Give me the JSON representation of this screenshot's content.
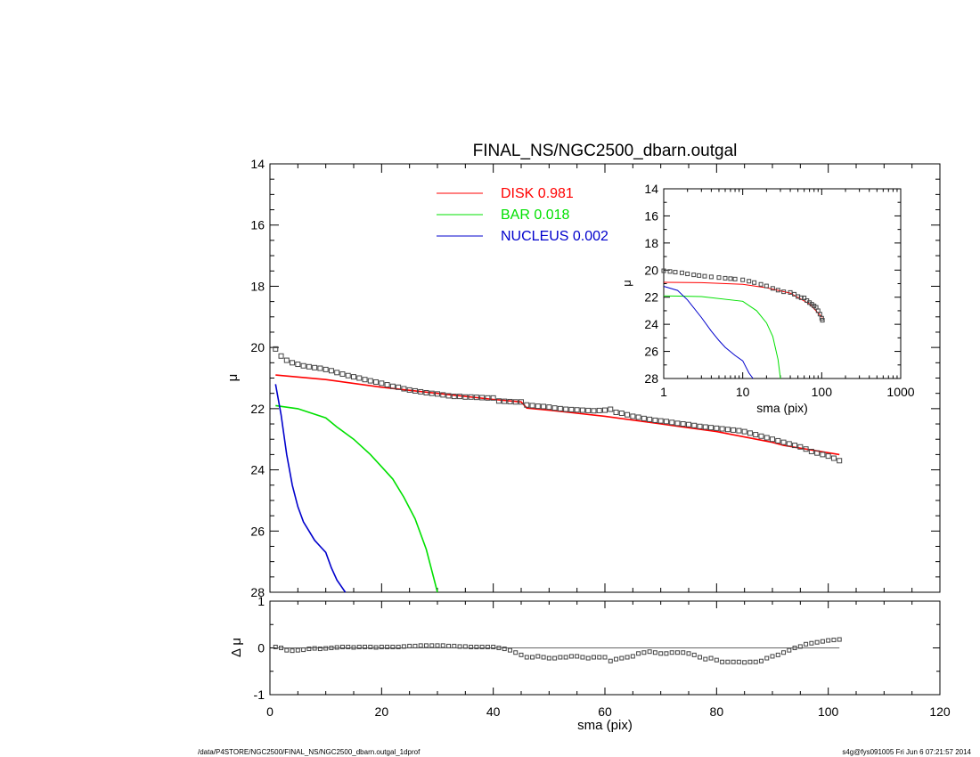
{
  "footer": {
    "path": "/data/P4STORE/NGC2500/FINAL_NS/NGC2500_dbarn.outgal_1dprof",
    "stamp": "s4g@fys091005  Fri Jun  6 07:21:57 2014"
  },
  "chart_data": [
    {
      "id": "main",
      "type": "line",
      "title": "FINAL_NS/NGC2500_dbarn.outgal",
      "xlabel": "",
      "ylabel": "μ",
      "xlim": [
        0,
        120
      ],
      "ylim": [
        28,
        14
      ],
      "x_ticks": [
        0,
        20,
        40,
        60,
        80,
        100,
        120
      ],
      "y_ticks": [
        14,
        16,
        18,
        20,
        22,
        24,
        26,
        28
      ],
      "legend": {
        "placement": "top-center",
        "entries": [
          {
            "label": "DISK",
            "value": "0.981",
            "color": "#ff0000"
          },
          {
            "label": "BAR",
            "value": "0.018",
            "color": "#00e000"
          },
          {
            "label": "NUCLEUS",
            "value": "0.002",
            "color": "#0000cc"
          }
        ]
      },
      "series": [
        {
          "name": "DISK",
          "color": "#ff0000",
          "x": [
            1,
            10,
            20,
            30,
            40,
            45,
            46,
            50,
            60,
            70,
            80,
            90,
            92,
            102
          ],
          "y": [
            20.9,
            21.05,
            21.3,
            21.5,
            21.7,
            21.78,
            21.98,
            22.05,
            22.25,
            22.5,
            22.75,
            23.1,
            23.2,
            23.5
          ]
        },
        {
          "name": "BAR",
          "color": "#00e000",
          "x": [
            1,
            5,
            10,
            12,
            15,
            18,
            20,
            22,
            24,
            26,
            28,
            30
          ],
          "y": [
            21.9,
            22.0,
            22.3,
            22.6,
            23.0,
            23.5,
            23.9,
            24.3,
            24.9,
            25.6,
            26.6,
            28.0
          ]
        },
        {
          "name": "NUCLEUS",
          "color": "#0000cc",
          "x": [
            1,
            2,
            3,
            4,
            5,
            6,
            7,
            8,
            9,
            10,
            11,
            12,
            13.5
          ],
          "y": [
            21.2,
            22.2,
            23.5,
            24.5,
            25.2,
            25.7,
            26.0,
            26.3,
            26.5,
            26.7,
            27.2,
            27.6,
            28.0
          ]
        },
        {
          "name": "data",
          "marker": "square",
          "color": "#444444",
          "x": [
            1,
            2,
            3,
            4,
            5,
            6,
            7,
            8,
            9,
            10,
            11,
            12,
            13,
            14,
            15,
            16,
            17,
            18,
            19,
            20,
            21,
            22,
            23,
            24,
            25,
            26,
            27,
            28,
            29,
            30,
            31,
            32,
            33,
            34,
            35,
            36,
            37,
            38,
            39,
            40,
            41,
            42,
            43,
            44,
            45,
            46,
            47,
            48,
            49,
            50,
            51,
            52,
            53,
            54,
            55,
            56,
            57,
            58,
            59,
            60,
            61,
            62,
            63,
            64,
            65,
            66,
            67,
            68,
            69,
            70,
            71,
            72,
            73,
            74,
            75,
            76,
            77,
            78,
            79,
            80,
            81,
            82,
            83,
            84,
            85,
            86,
            87,
            88,
            89,
            90,
            91,
            92,
            93,
            94,
            95,
            96,
            97,
            98,
            99,
            100,
            101,
            102
          ],
          "y": [
            20.05,
            20.28,
            20.42,
            20.5,
            20.55,
            20.6,
            20.63,
            20.66,
            20.68,
            20.72,
            20.76,
            20.82,
            20.87,
            20.92,
            20.96,
            21.0,
            21.05,
            21.09,
            21.13,
            21.17,
            21.22,
            21.27,
            21.3,
            21.35,
            21.39,
            21.42,
            21.45,
            21.48,
            21.5,
            21.52,
            21.55,
            21.58,
            21.6,
            21.6,
            21.62,
            21.62,
            21.63,
            21.64,
            21.65,
            21.65,
            21.75,
            21.76,
            21.77,
            21.78,
            21.78,
            21.88,
            21.9,
            21.92,
            21.93,
            21.95,
            21.98,
            22.0,
            22.02,
            22.03,
            22.04,
            22.05,
            22.06,
            22.07,
            22.06,
            22.05,
            22.02,
            22.12,
            22.15,
            22.2,
            22.25,
            22.28,
            22.32,
            22.35,
            22.38,
            22.4,
            22.42,
            22.45,
            22.48,
            22.5,
            22.52,
            22.55,
            22.58,
            22.6,
            22.62,
            22.64,
            22.66,
            22.68,
            22.7,
            22.72,
            22.75,
            22.8,
            22.85,
            22.9,
            22.95,
            23.0,
            23.05,
            23.1,
            23.15,
            23.2,
            23.25,
            23.32,
            23.4,
            23.45,
            23.5,
            23.55,
            23.62,
            23.7
          ]
        }
      ]
    },
    {
      "id": "residual",
      "type": "scatter",
      "xlabel": "sma (pix)",
      "ylabel": "Δ μ",
      "xlim": [
        0,
        120
      ],
      "ylim": [
        -1,
        1
      ],
      "x_ticks": [
        0,
        20,
        40,
        60,
        80,
        100,
        120
      ],
      "y_ticks": [
        -1,
        0,
        1
      ],
      "zero_line": {
        "from": 1,
        "to": 102
      },
      "series": [
        {
          "name": "residuals",
          "marker": "square",
          "color": "#444444",
          "x": [
            1,
            2,
            3,
            4,
            5,
            6,
            7,
            8,
            9,
            10,
            11,
            12,
            13,
            14,
            15,
            16,
            17,
            18,
            19,
            20,
            21,
            22,
            23,
            24,
            25,
            26,
            27,
            28,
            29,
            30,
            31,
            32,
            33,
            34,
            35,
            36,
            37,
            38,
            39,
            40,
            41,
            42,
            43,
            44,
            45,
            46,
            47,
            48,
            49,
            50,
            51,
            52,
            53,
            54,
            55,
            56,
            57,
            58,
            59,
            60,
            61,
            62,
            63,
            64,
            65,
            66,
            67,
            68,
            69,
            70,
            71,
            72,
            73,
            74,
            75,
            76,
            77,
            78,
            79,
            80,
            81,
            82,
            83,
            84,
            85,
            86,
            87,
            88,
            89,
            90,
            91,
            92,
            93,
            94,
            95,
            96,
            97,
            98,
            99,
            100,
            101,
            102
          ],
          "y": [
            0.02,
            0.0,
            -0.05,
            -0.06,
            -0.05,
            -0.04,
            -0.02,
            -0.01,
            -0.02,
            -0.01,
            0.0,
            0.01,
            0.02,
            0.02,
            0.01,
            0.02,
            0.02,
            0.02,
            0.01,
            0.02,
            0.02,
            0.02,
            0.02,
            0.03,
            0.04,
            0.04,
            0.05,
            0.05,
            0.05,
            0.05,
            0.05,
            0.04,
            0.04,
            0.03,
            0.03,
            0.02,
            0.02,
            0.02,
            0.02,
            0.02,
            0.0,
            -0.02,
            -0.05,
            -0.1,
            -0.15,
            -0.2,
            -0.2,
            -0.18,
            -0.2,
            -0.22,
            -0.22,
            -0.2,
            -0.2,
            -0.18,
            -0.18,
            -0.2,
            -0.22,
            -0.2,
            -0.2,
            -0.2,
            -0.28,
            -0.24,
            -0.22,
            -0.2,
            -0.18,
            -0.12,
            -0.1,
            -0.08,
            -0.1,
            -0.12,
            -0.12,
            -0.1,
            -0.1,
            -0.1,
            -0.12,
            -0.15,
            -0.2,
            -0.24,
            -0.22,
            -0.26,
            -0.3,
            -0.3,
            -0.3,
            -0.3,
            -0.31,
            -0.3,
            -0.3,
            -0.28,
            -0.22,
            -0.18,
            -0.15,
            -0.1,
            -0.05,
            0.0,
            0.03,
            0.08,
            0.1,
            0.12,
            0.14,
            0.16,
            0.17,
            0.18
          ]
        }
      ]
    },
    {
      "id": "inset",
      "type": "line",
      "xlabel": "sma (pix)",
      "ylabel": "μ",
      "xscale": "log",
      "xlim": [
        1,
        1000
      ],
      "ylim": [
        28,
        14
      ],
      "x_ticks": [
        1,
        10,
        100,
        1000
      ],
      "x_tick_labels": [
        "1",
        "10",
        "100",
        "1000"
      ],
      "y_ticks": [
        14,
        16,
        18,
        20,
        22,
        24,
        26,
        28
      ],
      "series": [
        {
          "name": "DISK",
          "color": "#ff0000",
          "x": [
            1,
            3,
            10,
            20,
            40,
            70,
            102
          ],
          "y": [
            20.9,
            20.93,
            21.05,
            21.3,
            21.7,
            22.5,
            23.5
          ]
        },
        {
          "name": "BAR",
          "color": "#00e000",
          "x": [
            1,
            3,
            10,
            15,
            20,
            24,
            28,
            30
          ],
          "y": [
            21.9,
            21.95,
            22.3,
            23.0,
            23.9,
            24.9,
            26.6,
            28.0
          ]
        },
        {
          "name": "NUCLEUS",
          "color": "#0000cc",
          "x": [
            1,
            1.5,
            2,
            3,
            4,
            5,
            6,
            8,
            10,
            12,
            13.5
          ],
          "y": [
            21.2,
            21.5,
            22.2,
            23.5,
            24.5,
            25.2,
            25.7,
            26.3,
            26.7,
            27.6,
            28.0
          ]
        },
        {
          "name": "data",
          "marker": "square",
          "color": "#444444",
          "x": [
            1,
            1.2,
            1.4,
            1.7,
            2,
            2.4,
            2.8,
            3.3,
            4,
            5,
            6,
            7,
            8,
            10,
            12,
            14,
            17,
            20,
            24,
            28,
            33,
            40,
            45,
            50,
            55,
            60,
            65,
            70,
            75,
            80,
            85,
            90,
            95,
            100,
            102
          ],
          "y": [
            20.05,
            20.1,
            20.15,
            20.2,
            20.28,
            20.35,
            20.4,
            20.45,
            20.5,
            20.55,
            20.6,
            20.63,
            20.66,
            20.72,
            20.82,
            20.92,
            21.05,
            21.17,
            21.35,
            21.48,
            21.6,
            21.65,
            21.78,
            21.95,
            22.04,
            22.05,
            22.25,
            22.4,
            22.52,
            22.64,
            22.75,
            23.0,
            23.25,
            23.55,
            23.7
          ]
        }
      ]
    }
  ]
}
